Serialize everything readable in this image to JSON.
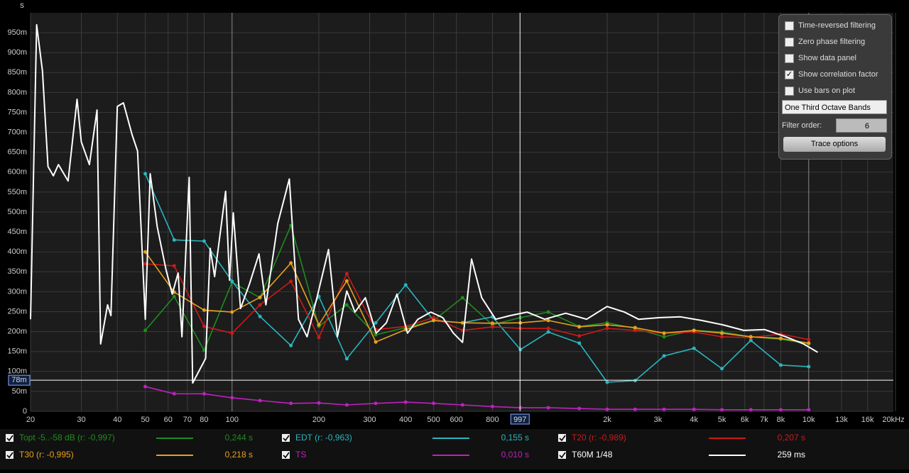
{
  "chart_data": {
    "type": "line",
    "y_label": "s",
    "log_x": true,
    "grid": true,
    "xlim": [
      20,
      20000
    ],
    "ylim": [
      0,
      1
    ],
    "xticks": [
      20,
      30,
      40,
      50,
      60,
      70,
      80,
      100,
      200,
      300,
      400,
      500,
      600,
      800,
      {
        "value": 2000,
        "label": "2k"
      },
      {
        "value": 3000,
        "label": "3k"
      },
      {
        "value": 4000,
        "label": "4k"
      },
      {
        "value": 5000,
        "label": "5k"
      },
      {
        "value": 6000,
        "label": "6k"
      },
      {
        "value": 7000,
        "label": "7k"
      },
      {
        "value": 8000,
        "label": "8k"
      },
      {
        "value": 10000,
        "label": "10k"
      },
      {
        "value": 13000,
        "label": "13k"
      },
      {
        "value": 16000,
        "label": "16k"
      },
      {
        "value": 20000,
        "label": "20kHz"
      }
    ],
    "yticks": [
      0,
      {
        "value": 0.05,
        "label": "50m"
      },
      {
        "value": 0.1,
        "label": "100m"
      },
      {
        "value": 0.15,
        "label": "150m"
      },
      {
        "value": 0.2,
        "label": "200m"
      },
      {
        "value": 0.25,
        "label": "250m"
      },
      {
        "value": 0.3,
        "label": "300m"
      },
      {
        "value": 0.35,
        "label": "350m"
      },
      {
        "value": 0.4,
        "label": "400m"
      },
      {
        "value": 0.45,
        "label": "450m"
      },
      {
        "value": 0.5,
        "label": "500m"
      },
      {
        "value": 0.55,
        "label": "550m"
      },
      {
        "value": 0.6,
        "label": "600m"
      },
      {
        "value": 0.65,
        "label": "650m"
      },
      {
        "value": 0.7,
        "label": "700m"
      },
      {
        "value": 0.75,
        "label": "750m"
      },
      {
        "value": 0.8,
        "label": "800m"
      },
      {
        "value": 0.85,
        "label": "850m"
      },
      {
        "value": 0.9,
        "label": "900m"
      },
      {
        "value": 0.95,
        "label": "950m"
      }
    ],
    "cursor": {
      "x": 997,
      "y": {
        "value": 0.078,
        "label": "78m"
      }
    },
    "x": [
      50,
      63,
      80,
      100,
      125,
      160,
      200,
      250,
      315,
      400,
      500,
      630,
      800,
      1000,
      1250,
      1600,
      2000,
      2500,
      3150,
      4000,
      5000,
      6300,
      8000,
      10000
    ],
    "series": [
      {
        "name": "Topt -5..-58 dB (r: -0,997)",
        "color": "#1f8c1f",
        "checked": true,
        "summary": "0,244 s",
        "values": [
          0.203,
          0.288,
          0.153,
          0.324,
          0.285,
          0.466,
          0.213,
          0.267,
          0.192,
          0.21,
          0.228,
          0.285,
          0.217,
          0.235,
          0.249,
          0.213,
          0.222,
          0.208,
          0.187,
          0.203,
          0.199,
          0.187,
          0.181,
          0.169
        ]
      },
      {
        "name": "EDT (r: -0,963)",
        "color": "#2ab5c0",
        "checked": true,
        "summary": "0,155 s",
        "values": [
          0.596,
          0.43,
          0.427,
          0.326,
          0.238,
          0.165,
          0.288,
          0.132,
          0.222,
          0.317,
          0.228,
          0.222,
          0.237,
          0.155,
          0.199,
          0.171,
          0.073,
          0.077,
          0.139,
          0.158,
          0.107,
          0.178,
          0.116,
          0.112
        ]
      },
      {
        "name": "T20 (r: -0,989)",
        "color": "#cc1a1a",
        "checked": true,
        "summary": "0,207 s",
        "values": [
          0.37,
          0.365,
          0.213,
          0.196,
          0.267,
          0.326,
          0.185,
          0.345,
          0.205,
          0.213,
          0.235,
          0.203,
          0.212,
          0.208,
          0.208,
          0.189,
          0.208,
          0.203,
          0.196,
          0.199,
          0.187,
          0.185,
          0.194,
          0.18
        ]
      },
      {
        "name": "T30 (r: -0,995)",
        "color": "#e8a020",
        "checked": true,
        "summary": "0,218 s",
        "values": [
          0.4,
          0.299,
          0.254,
          0.249,
          0.286,
          0.372,
          0.217,
          0.327,
          0.174,
          0.205,
          0.228,
          0.222,
          0.221,
          0.222,
          0.228,
          0.212,
          0.217,
          0.21,
          0.196,
          0.203,
          0.196,
          0.187,
          0.183,
          0.171
        ]
      },
      {
        "name": "TS",
        "color": "#c020c0",
        "checked": true,
        "summary": "0,010 s",
        "values": [
          0.062,
          0.044,
          0.044,
          0.034,
          0.027,
          0.02,
          0.021,
          0.016,
          0.02,
          0.023,
          0.02,
          0.016,
          0.012,
          0.009,
          0.009,
          0.007,
          0.005,
          0.005,
          0.005,
          0.005,
          0.004,
          0.004,
          0.004,
          0.004
        ]
      },
      {
        "name": "T60M 1/48",
        "color": "#ffffff",
        "checked": true,
        "summary": "259 ms",
        "x": [
          20,
          21,
          22,
          23,
          24,
          25,
          27,
          29,
          30,
          32,
          34,
          35,
          37,
          38,
          40,
          42,
          45,
          47,
          50,
          52,
          55,
          59,
          62,
          65,
          67,
          71,
          73,
          81,
          84,
          87,
          95,
          98,
          101,
          107,
          115,
          124,
          131,
          144,
          158,
          170,
          182,
          197,
          216,
          232,
          250,
          267,
          290,
          316,
          343,
          373,
          406,
          441,
          489,
          538,
          586,
          630,
          677,
          734,
          821,
          919,
          1055,
          1214,
          1436,
          1697,
          1998,
          2297,
          2570,
          3041,
          3594,
          4253,
          5032,
          5951,
          7042,
          8330,
          9595,
          10745
        ],
        "values": [
          0.231,
          0.97,
          0.854,
          0.614,
          0.591,
          0.619,
          0.578,
          0.783,
          0.676,
          0.619,
          0.756,
          0.169,
          0.267,
          0.24,
          0.765,
          0.774,
          0.694,
          0.653,
          0.231,
          0.596,
          0.463,
          0.356,
          0.294,
          0.347,
          0.187,
          0.587,
          0.071,
          0.133,
          0.409,
          0.338,
          0.552,
          0.329,
          0.498,
          0.258,
          0.32,
          0.395,
          0.267,
          0.471,
          0.583,
          0.231,
          0.187,
          0.285,
          0.406,
          0.187,
          0.302,
          0.249,
          0.285,
          0.196,
          0.222,
          0.294,
          0.196,
          0.231,
          0.249,
          0.235,
          0.196,
          0.173,
          0.382,
          0.285,
          0.231,
          0.24,
          0.249,
          0.231,
          0.246,
          0.231,
          0.263,
          0.249,
          0.231,
          0.235,
          0.237,
          0.228,
          0.217,
          0.203,
          0.205,
          0.187,
          0.169,
          0.148
        ]
      }
    ]
  },
  "controls": {
    "checkboxes": [
      {
        "label": "Time-reversed filtering",
        "checked": false
      },
      {
        "label": "Zero phase filtering",
        "checked": false
      },
      {
        "label": "Show data panel",
        "checked": false
      },
      {
        "label": "Show correlation factor",
        "checked": true
      },
      {
        "label": "Use bars on plot",
        "checked": false
      }
    ],
    "bands": "One Third Octave Bands",
    "filter_order_label": "Filter order:",
    "filter_order": 6,
    "button": "Trace options"
  }
}
